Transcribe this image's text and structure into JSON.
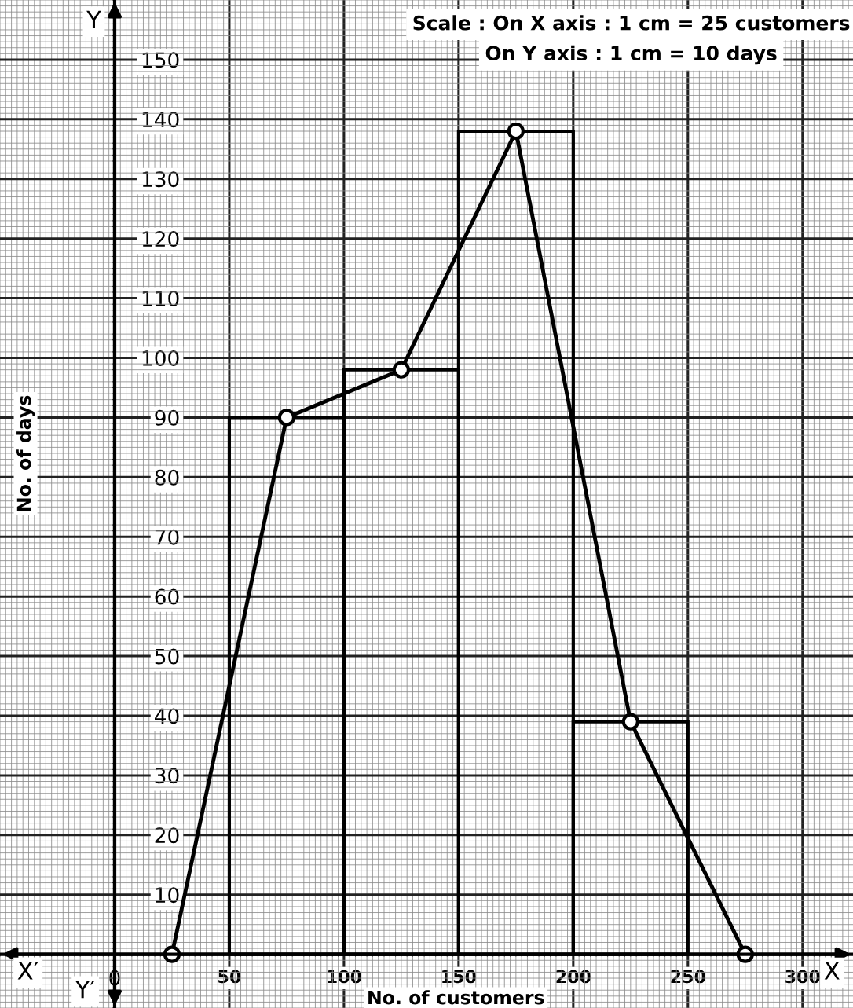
{
  "chart_data": {
    "type": "histogram",
    "xlabel": "No. of customers",
    "ylabel": "No. of days",
    "bins": [
      50,
      100,
      150,
      200,
      250
    ],
    "values": [
      90,
      98,
      138,
      39
    ],
    "color": "#000000",
    "series": [
      {
        "type": "line",
        "x": [
          25,
          75,
          125,
          175,
          225,
          275
        ],
        "values": [
          0,
          90,
          98,
          138,
          39,
          0
        ],
        "color": "#000000",
        "marker": "circle"
      }
    ],
    "xlim": [
      -50,
      322
    ],
    "ylim": [
      -9,
      160
    ],
    "xticks": [
      0,
      50,
      100,
      150,
      200,
      250,
      300
    ],
    "yticks": [
      10,
      20,
      30,
      40,
      50,
      60,
      70,
      80,
      90,
      100,
      110,
      120,
      130,
      140,
      150
    ],
    "grid": true,
    "annotations": [
      "Scale : On X axis : 1 cm = 25 customers",
      "On Y axis : 1 cm = 10 days",
      "X′",
      "X",
      "Y",
      "Y′"
    ]
  }
}
